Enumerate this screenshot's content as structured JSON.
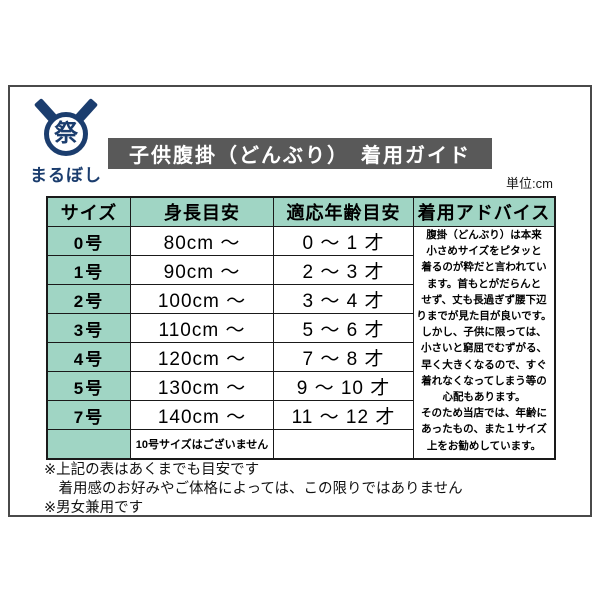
{
  "brand": {
    "name": "まるぼし",
    "emblem_character": "祭",
    "emblem_color": "#1b3d6e"
  },
  "title_bar": {
    "text": "子供腹掛（どんぶり）　着用ガイド",
    "bg_color": "#595959",
    "text_color": "#ffffff"
  },
  "unit_label": "単位:cm",
  "size_table": {
    "header_bg_color": "#a0d5c4",
    "border_color": "#1a1a1a",
    "columns": [
      "サイズ",
      "身長目安",
      "適応年齢目安",
      "着用アドバイス"
    ],
    "rows": [
      {
        "size": "0号",
        "height": "80cm ～",
        "age": "0 ～ 1 才"
      },
      {
        "size": "1号",
        "height": "90cm ～",
        "age": "2 ～ 3 才"
      },
      {
        "size": "2号",
        "height": "100cm ～",
        "age": "3 ～ 4 才"
      },
      {
        "size": "3号",
        "height": "110cm ～",
        "age": "5 ～ 6 才"
      },
      {
        "size": "4号",
        "height": "120cm ～",
        "age": "7 ～ 8 才"
      },
      {
        "size": "5号",
        "height": "130cm ～",
        "age": "9 ～ 10 才"
      },
      {
        "size": "7号",
        "height": "140cm ～",
        "age": "11 ～ 12 才"
      }
    ],
    "note_row": {
      "note": "10号サイズはございません"
    },
    "advice": "腹掛（どんぶり）は本来\n小さめサイズをピタッと\n着るのが粋だと言われてい\nます。首もとがだらんと\nせず、丈も長過ぎず腰下辺\nりまでが見た目が良いです。\nしかし、子供に限っては、\n小さいと窮屈でむずがる、\n早く大きくなるので、すぐ\n着れなくなってしまう等の\n心配もあります。\nそのため当店では、年齢に\nあったもの、また１サイズ\n上をお勧めしています。"
  },
  "footnotes": [
    "※上記の表はあくまでも目安です",
    "　着用感のお好みやご体格によっては、この限りではありません",
    "※男女兼用です"
  ]
}
